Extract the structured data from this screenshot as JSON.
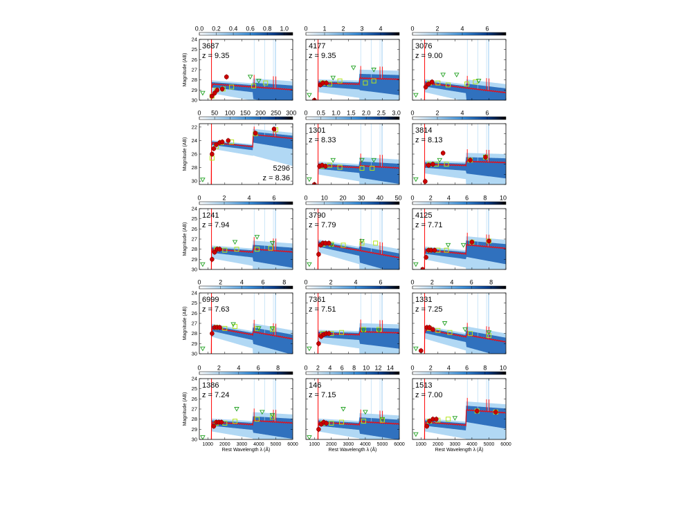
{
  "chart_data": {
    "type": "scatter",
    "figure": "SED fits grid, 5 rows x 3 columns",
    "xlabel": "Rest Wavelength λ (Å)",
    "ylabel": "Magnitude (AB)",
    "xlim": [
      500,
      6000
    ],
    "xticks": [
      1000,
      2000,
      3000,
      4000,
      5000,
      6000
    ],
    "ylim_default": [
      30,
      24
    ],
    "yticks_default": [
      24,
      25,
      26,
      27,
      28,
      29,
      30
    ],
    "colors": {
      "model_light": "#a9d4f3",
      "model_dark": "#1a5fb4",
      "best_fit": "#ff0000",
      "detection": "#cc0000",
      "synthetic_phot": "#b5e61d",
      "upper_limit": "#1fa01f"
    },
    "panels": [
      {
        "id": "3687",
        "z_label": "z = 9.35",
        "z": 9.35,
        "cbar_ticks": [
          "0.0",
          "0.2",
          "0.4",
          "0.6",
          "0.8",
          "1.0"
        ],
        "cbar_max": 1.1,
        "fit": {
          "break_mag": 28.4,
          "uv_slope": 0.12,
          "balmer_jump": 0.0
        },
        "detections": [
          [
            1240,
            29.6
          ],
          [
            1400,
            29.3
          ],
          [
            1550,
            29.0
          ],
          [
            1850,
            28.9
          ],
          [
            2100,
            27.7
          ]
        ],
        "synth": [
          [
            1250,
            29.6
          ],
          [
            1500,
            29.0
          ],
          [
            1900,
            28.9
          ],
          [
            2400,
            28.7
          ],
          [
            3700,
            28.6
          ],
          [
            4400,
            28.3
          ]
        ],
        "upper_limits": [
          [
            700,
            29.3
          ],
          [
            3500,
            27.7
          ],
          [
            4000,
            28.1
          ]
        ]
      },
      {
        "id": "4177",
        "z_label": "z = 9.35",
        "z": 9.35,
        "cbar_ticks": [
          "0",
          "1",
          "2",
          "3",
          "4"
        ],
        "cbar_max": 5.0,
        "fit": {
          "break_mag": 28.3,
          "uv_slope": 0.05,
          "balmer_jump": 0.6
        },
        "detections": [
          [
            1000,
            30.0
          ],
          [
            1350,
            28.5
          ],
          [
            1500,
            28.3
          ],
          [
            1700,
            28.3
          ]
        ],
        "synth": [
          [
            1500,
            28.3
          ],
          [
            1900,
            28.4
          ],
          [
            2500,
            28.1
          ],
          [
            4000,
            28.3
          ],
          [
            4500,
            28.1
          ]
        ],
        "upper_limits": [
          [
            700,
            29.5
          ],
          [
            2100,
            27.8
          ],
          [
            3300,
            26.8
          ],
          [
            4500,
            27.0
          ]
        ]
      },
      {
        "id": "3076",
        "z_label": "z = 9.00",
        "z": 9.0,
        "cbar_ticks": [
          "0",
          "2",
          "4",
          "6"
        ],
        "cbar_max": 7.5,
        "fit": {
          "break_mag": 28.3,
          "uv_slope": 0.2,
          "balmer_jump": 0.0
        },
        "detections": [
          [
            1280,
            28.7
          ],
          [
            1450,
            28.4
          ],
          [
            1650,
            28.2
          ]
        ],
        "synth": [
          [
            1500,
            28.3
          ],
          [
            2000,
            28.3
          ],
          [
            2600,
            28.5
          ],
          [
            3700,
            28.4
          ],
          [
            4200,
            28.2
          ]
        ],
        "upper_limits": [
          [
            700,
            29.5
          ],
          [
            2300,
            27.5
          ],
          [
            3100,
            27.5
          ],
          [
            4400,
            28.1
          ]
        ]
      },
      {
        "id": "5296",
        "z_label": "z = 8.36",
        "z": 8.36,
        "cbar_ticks": [
          "0",
          "50",
          "100",
          "150",
          "200",
          "250",
          "300"
        ],
        "cbar_max": 305,
        "ylim": [
          30.5,
          21.5
        ],
        "yticks": [
          22,
          24,
          26,
          28,
          30
        ],
        "label_pos": "bottom-right",
        "fit": {
          "break_mag": 24.3,
          "uv_slope": 0.25,
          "balmer_jump": 1.8
        },
        "detections": [
          [
            1250,
            26.0
          ],
          [
            1350,
            25.2
          ],
          [
            1500,
            24.6
          ],
          [
            1700,
            24.3
          ],
          [
            1850,
            24.2
          ],
          [
            2200,
            24.0
          ],
          [
            3800,
            22.9
          ],
          [
            4900,
            22.3
          ]
        ],
        "synth": [
          [
            1250,
            26.6
          ],
          [
            1500,
            24.9
          ],
          [
            1800,
            24.3
          ],
          [
            2400,
            24.2
          ],
          [
            3800,
            23.0
          ],
          [
            5000,
            22.4
          ]
        ],
        "upper_limits": [
          [
            700,
            29.8
          ]
        ]
      },
      {
        "id": "1301",
        "z_label": "z = 8.33",
        "z": 8.33,
        "cbar_ticks": [
          "0",
          "0.5",
          "1.0",
          "1.5",
          "2.0",
          "2.5",
          "3.0"
        ],
        "cbar_max": 3.1,
        "fit": {
          "break_mag": 28.1,
          "uv_slope": 0.1,
          "balmer_jump": 0.2
        },
        "detections": [
          [
            1000,
            30.0
          ],
          [
            1300,
            28.2
          ],
          [
            1450,
            28.1
          ],
          [
            1650,
            28.2
          ]
        ],
        "synth": [
          [
            1500,
            28.2
          ],
          [
            1900,
            28.1
          ],
          [
            2500,
            28.3
          ],
          [
            3800,
            28.4
          ],
          [
            4400,
            28.4
          ]
        ],
        "upper_limits": [
          [
            700,
            29.5
          ],
          [
            2100,
            27.6
          ],
          [
            3800,
            27.6
          ],
          [
            4500,
            27.6
          ]
        ]
      },
      {
        "id": "3814",
        "z_label": "z = 8.13",
        "z": 8.13,
        "cbar_ticks": [
          "0",
          "2",
          "4",
          "6"
        ],
        "cbar_max": 7.5,
        "fit": {
          "break_mag": 28.0,
          "uv_slope": 0.05,
          "balmer_jump": 0.4
        },
        "detections": [
          [
            1250,
            29.7
          ],
          [
            1450,
            28.1
          ],
          [
            1700,
            28.0
          ],
          [
            2300,
            26.9
          ],
          [
            3900,
            27.6
          ],
          [
            4800,
            27.3
          ]
        ],
        "synth": [
          [
            1500,
            28.0
          ],
          [
            1900,
            28.0
          ],
          [
            2500,
            28.0
          ],
          [
            3900,
            27.6
          ],
          [
            4800,
            27.3
          ]
        ],
        "upper_limits": [
          [
            700,
            29.5
          ],
          [
            2100,
            27.6
          ],
          [
            4800,
            27.3
          ]
        ]
      },
      {
        "id": "1241",
        "z_label": "z = 7.94",
        "z": 7.94,
        "cbar_ticks": [
          "0",
          "2",
          "4",
          "6"
        ],
        "cbar_max": 7.5,
        "fit": {
          "break_mag": 28.0,
          "uv_slope": 0.12,
          "balmer_jump": 0.3
        },
        "detections": [
          [
            1250,
            29.0
          ],
          [
            1400,
            28.3
          ],
          [
            1550,
            28.0
          ],
          [
            1700,
            28.0
          ]
        ],
        "synth": [
          [
            1500,
            28.0
          ],
          [
            2000,
            28.1
          ],
          [
            2700,
            28.0
          ],
          [
            3900,
            28.0
          ],
          [
            4700,
            27.9
          ]
        ],
        "upper_limits": [
          [
            700,
            29.5
          ],
          [
            2600,
            27.3
          ],
          [
            3900,
            26.8
          ],
          [
            4800,
            27.4
          ]
        ]
      },
      {
        "id": "3790",
        "z_label": "z = 7.79",
        "z": 7.79,
        "cbar_ticks": [
          "0",
          "10",
          "20",
          "30",
          "40",
          "50"
        ],
        "cbar_max": 50.5,
        "fit": {
          "break_mag": 27.4,
          "uv_slope": 0.3,
          "balmer_jump": 0.0
        },
        "detections": [
          [
            1250,
            28.5
          ],
          [
            1380,
            27.6
          ],
          [
            1500,
            27.4
          ],
          [
            1650,
            27.4
          ],
          [
            1850,
            27.4
          ]
        ],
        "synth": [
          [
            1500,
            27.5
          ],
          [
            2000,
            27.5
          ],
          [
            2700,
            27.6
          ],
          [
            3800,
            27.4
          ],
          [
            4600,
            27.4
          ]
        ],
        "upper_limits": [
          [
            700,
            29.5
          ],
          [
            2000,
            27.6
          ],
          [
            3800,
            27.2
          ]
        ]
      },
      {
        "id": "4125",
        "z_label": "z = 7.71",
        "z": 7.71,
        "cbar_ticks": [
          "0",
          "2",
          "4",
          "6",
          "8",
          "10"
        ],
        "cbar_max": 10.3,
        "fit": {
          "break_mag": 28.1,
          "uv_slope": 0.15,
          "balmer_jump": 0.9
        },
        "detections": [
          [
            1100,
            30.0
          ],
          [
            1300,
            28.8
          ],
          [
            1450,
            28.1
          ],
          [
            1600,
            28.1
          ],
          [
            1800,
            28.1
          ],
          [
            4000,
            27.3
          ],
          [
            5000,
            27.2
          ]
        ],
        "synth": [
          [
            1500,
            28.1
          ],
          [
            2000,
            28.1
          ],
          [
            2500,
            28.1
          ],
          [
            4000,
            27.3
          ],
          [
            5000,
            27.2
          ]
        ],
        "upper_limits": [
          [
            700,
            29.5
          ],
          [
            2600,
            27.6
          ],
          [
            3500,
            27.6
          ]
        ]
      },
      {
        "id": "6999",
        "z_label": "z = 7.63",
        "z": 7.63,
        "cbar_ticks": [
          "0",
          "2",
          "4",
          "6",
          "8"
        ],
        "cbar_max": 8.8,
        "fit": {
          "break_mag": 27.4,
          "uv_slope": 0.3,
          "balmer_jump": 0.3
        },
        "detections": [
          [
            1250,
            28.0
          ],
          [
            1400,
            27.4
          ],
          [
            1550,
            27.4
          ],
          [
            1700,
            27.4
          ]
        ],
        "synth": [
          [
            1500,
            27.4
          ],
          [
            2000,
            27.5
          ],
          [
            2600,
            27.3
          ],
          [
            3900,
            27.5
          ],
          [
            4800,
            27.6
          ]
        ],
        "upper_limits": [
          [
            700,
            29.5
          ],
          [
            2500,
            27.1
          ],
          [
            4000,
            27.5
          ],
          [
            4800,
            27.5
          ]
        ]
      },
      {
        "id": "7361",
        "z_label": "z = 7.51",
        "z": 7.51,
        "cbar_ticks": [
          "0",
          "2",
          "4",
          "6"
        ],
        "cbar_max": 7.5,
        "fit": {
          "break_mag": 28.0,
          "uv_slope": 0.05,
          "balmer_jump": 0.3
        },
        "detections": [
          [
            1250,
            29.0
          ],
          [
            1400,
            28.3
          ],
          [
            1550,
            28.1
          ],
          [
            1700,
            28.0
          ],
          [
            1850,
            28.0
          ]
        ],
        "synth": [
          [
            1500,
            28.0
          ],
          [
            2000,
            28.0
          ],
          [
            2600,
            27.9
          ],
          [
            3900,
            27.6
          ],
          [
            4800,
            27.6
          ]
        ],
        "upper_limits": [
          [
            700,
            29.5
          ],
          [
            3900,
            27.7
          ],
          [
            4800,
            27.7
          ]
        ]
      },
      {
        "id": "1331",
        "z_label": "z = 7.25",
        "z": 7.25,
        "cbar_ticks": [
          "0",
          "2",
          "4",
          "6",
          "8"
        ],
        "cbar_max": 9.5,
        "fit": {
          "break_mag": 27.6,
          "uv_slope": 0.3,
          "balmer_jump": 0.2
        },
        "detections": [
          [
            1000,
            29.7
          ],
          [
            1350,
            27.4
          ],
          [
            1500,
            27.4
          ],
          [
            1700,
            27.6
          ]
        ],
        "synth": [
          [
            1500,
            27.5
          ],
          [
            2000,
            27.7
          ],
          [
            2700,
            27.9
          ],
          [
            3900,
            28.0
          ],
          [
            5000,
            28.2
          ]
        ],
        "upper_limits": [
          [
            700,
            29.5
          ],
          [
            2400,
            27.0
          ],
          [
            3600,
            27.6
          ],
          [
            5000,
            27.9
          ]
        ]
      },
      {
        "id": "1386",
        "z_label": "z = 7.24",
        "z": 7.24,
        "cbar_ticks": [
          "0",
          "2",
          "4",
          "6",
          "8"
        ],
        "cbar_max": 9.5,
        "fit": {
          "break_mag": 28.3,
          "uv_slope": 0.1,
          "balmer_jump": 0.4
        },
        "detections": [
          [
            1350,
            28.7
          ],
          [
            1500,
            28.3
          ],
          [
            1650,
            28.3
          ],
          [
            1800,
            28.3
          ]
        ],
        "synth": [
          [
            1500,
            28.4
          ],
          [
            2000,
            28.4
          ],
          [
            2600,
            28.2
          ],
          [
            3900,
            28.0
          ],
          [
            4800,
            27.8
          ]
        ],
        "upper_limits": [
          [
            700,
            29.8
          ],
          [
            2700,
            27.0
          ],
          [
            4200,
            27.3
          ],
          [
            4800,
            27.6
          ]
        ]
      },
      {
        "id": "146",
        "z_label": "z = 7.15",
        "z": 7.15,
        "cbar_ticks": [
          "0",
          "2",
          "4",
          "6",
          "8",
          "10",
          "12",
          "14"
        ],
        "cbar_max": 15.5,
        "fit": {
          "break_mag": 28.3,
          "uv_slope": 0.1,
          "balmer_jump": 0.3
        },
        "detections": [
          [
            1250,
            29.0
          ],
          [
            1400,
            28.5
          ],
          [
            1550,
            28.3
          ],
          [
            1700,
            28.4
          ]
        ],
        "synth": [
          [
            1500,
            28.4
          ],
          [
            2000,
            28.4
          ],
          [
            2600,
            28.3
          ],
          [
            3900,
            28.2
          ],
          [
            5000,
            28.1
          ]
        ],
        "upper_limits": [
          [
            700,
            29.8
          ],
          [
            2700,
            27.0
          ],
          [
            4000,
            27.3
          ],
          [
            5000,
            28.0
          ]
        ]
      },
      {
        "id": "1513",
        "z_label": "z = 7.00",
        "z": 7.0,
        "cbar_ticks": [
          "0",
          "2",
          "4",
          "6",
          "8",
          "10"
        ],
        "cbar_max": 10.3,
        "fit": {
          "break_mag": 28.3,
          "uv_slope": 0.12,
          "balmer_jump": 1.5
        },
        "detections": [
          [
            1350,
            28.7
          ],
          [
            1500,
            28.2
          ],
          [
            1700,
            28.0
          ],
          [
            1900,
            28.0
          ],
          [
            4300,
            27.2
          ],
          [
            5400,
            27.3
          ]
        ],
        "synth": [
          [
            1500,
            28.2
          ],
          [
            2000,
            28.1
          ],
          [
            2600,
            28.0
          ],
          [
            4300,
            27.2
          ],
          [
            5400,
            27.3
          ]
        ],
        "upper_limits": [
          [
            700,
            29.5
          ],
          [
            3000,
            27.9
          ]
        ]
      }
    ]
  }
}
